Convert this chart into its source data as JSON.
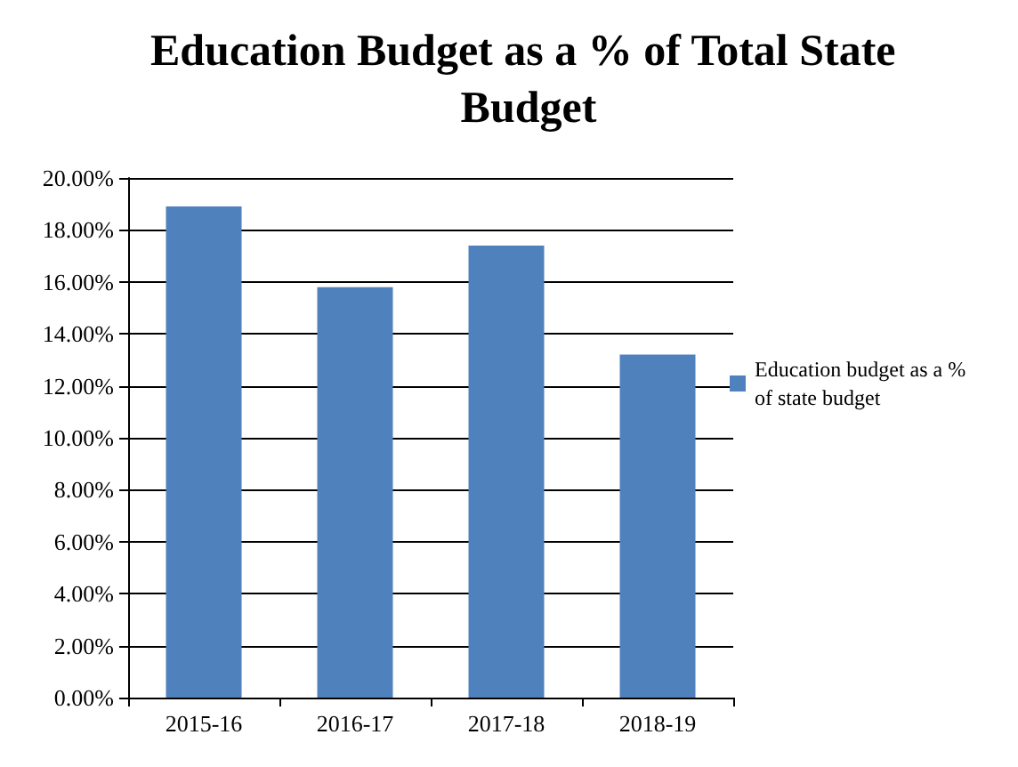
{
  "chart_data": {
    "type": "bar",
    "title": "Education Budget as a % of Total State Budget",
    "categories": [
      "2015-16",
      "2016-17",
      "2017-18",
      "2018-19"
    ],
    "series": [
      {
        "name": "Education budget as a % of state budget",
        "color": "#4f81bd",
        "values": [
          18.9,
          15.8,
          17.4,
          13.2
        ]
      }
    ],
    "ylim": [
      0,
      20
    ],
    "yticks": [
      {
        "value": 0,
        "label": "0.00%"
      },
      {
        "value": 2,
        "label": "2.00%"
      },
      {
        "value": 4,
        "label": "4.00%"
      },
      {
        "value": 6,
        "label": "6.00%"
      },
      {
        "value": 8,
        "label": "8.00%"
      },
      {
        "value": 10,
        "label": "10.00%"
      },
      {
        "value": 12,
        "label": "12.00%"
      },
      {
        "value": 14,
        "label": "14.00%"
      },
      {
        "value": 16,
        "label": "16.00%"
      },
      {
        "value": 18,
        "label": "18.00%"
      },
      {
        "value": 20,
        "label": "20.00%"
      }
    ],
    "grid": "y",
    "legend": "right"
  }
}
